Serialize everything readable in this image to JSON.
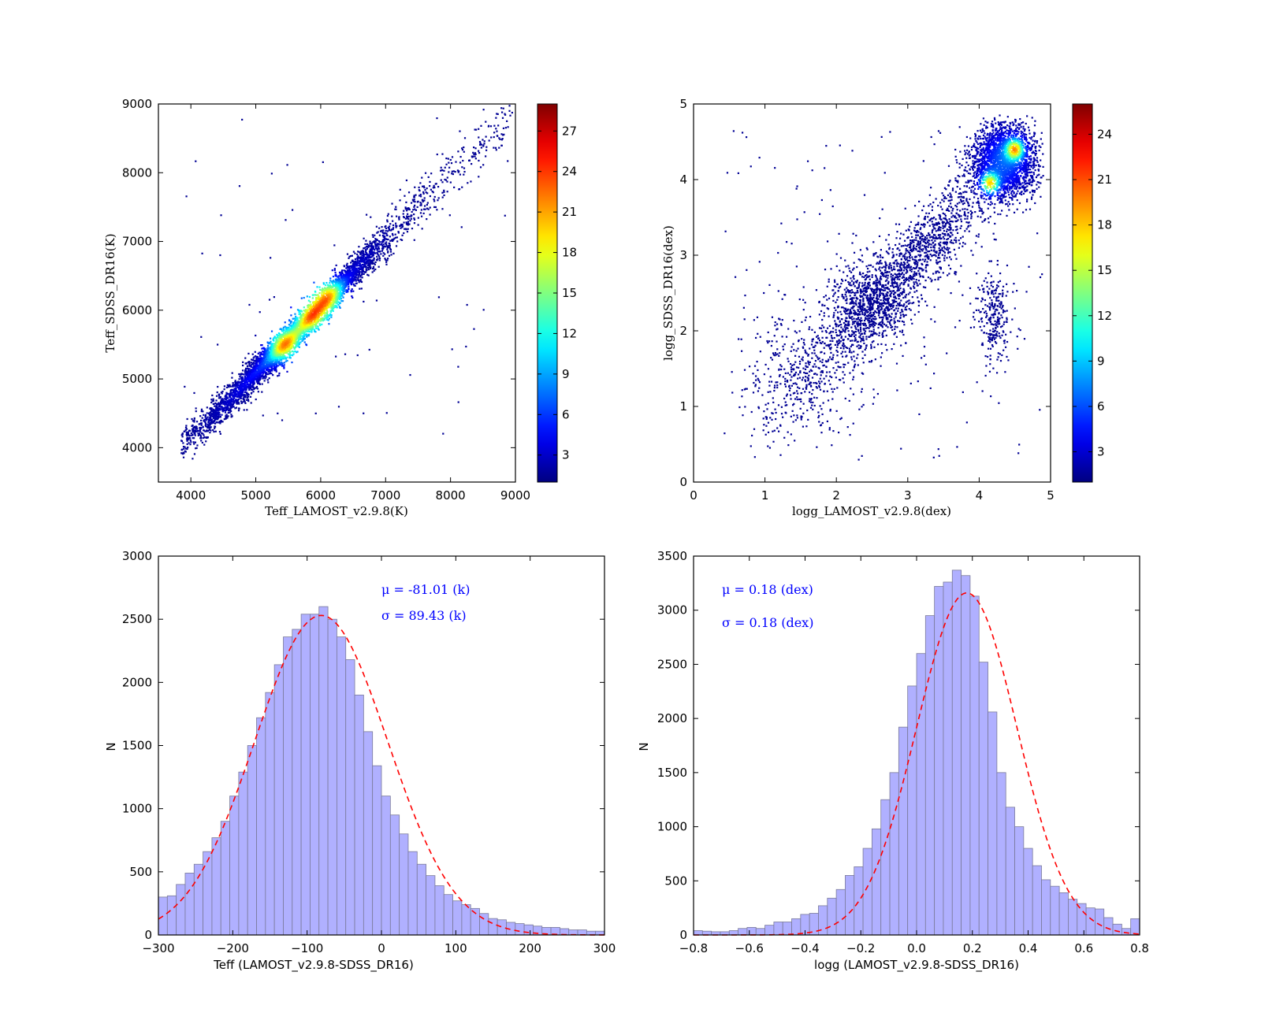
{
  "chart_data": [
    {
      "type": "heatmap",
      "subtype": "density-scatter",
      "xlabel": "Teff_LAMOST_v2.9.8(K)",
      "ylabel": "Teff_SDSS_DR16(K)",
      "xlim": [
        3500,
        9000
      ],
      "ylim": [
        3500,
        9000
      ],
      "xticks": [
        "4000",
        "5000",
        "6000",
        "7000",
        "8000",
        "9000"
      ],
      "yticks": [
        "4000",
        "5000",
        "6000",
        "7000",
        "8000",
        "9000"
      ],
      "colorbar": {
        "min": 1,
        "max": 29,
        "ticks": [
          "3",
          "6",
          "9",
          "12",
          "15",
          "18",
          "21",
          "24",
          "27"
        ],
        "colormap": "jet"
      },
      "density": {
        "ridge": [
          [
            3850,
            4050
          ],
          [
            4500,
            4600
          ],
          [
            5000,
            5100
          ],
          [
            5500,
            5550
          ],
          [
            6000,
            6050
          ],
          [
            6500,
            6550
          ],
          [
            7000,
            7050
          ],
          [
            7500,
            7550
          ],
          [
            8000,
            8000
          ],
          [
            8500,
            8450
          ],
          [
            8900,
            8800
          ]
        ],
        "peaks": [
          [
            5450,
            5500
          ],
          [
            5850,
            5900
          ],
          [
            6100,
            6200
          ]
        ],
        "scatter_dex_k": 120
      }
    },
    {
      "type": "heatmap",
      "subtype": "density-scatter",
      "xlabel": "logg_LAMOST_v2.9.8(dex)",
      "ylabel": "logg_SDSS_DR16(dex)",
      "xlim": [
        0,
        5
      ],
      "ylim": [
        0,
        5
      ],
      "xticks": [
        "0",
        "1",
        "2",
        "3",
        "4",
        "5"
      ],
      "yticks": [
        "0",
        "1",
        "2",
        "3",
        "4",
        "5"
      ],
      "colorbar": {
        "min": 1,
        "max": 26,
        "ticks": [
          "3",
          "6",
          "9",
          "12",
          "15",
          "18",
          "21",
          "24"
        ],
        "colormap": "jet"
      },
      "density": {
        "clusters": [
          {
            "x": 4.35,
            "y": 4.25,
            "sx": 0.22,
            "sy": 0.25,
            "weight": 0.45
          },
          {
            "x": 3.1,
            "y": 2.9,
            "sx": 0.55,
            "sy": 0.5,
            "weight": 0.3
          },
          {
            "x": 2.4,
            "y": 2.35,
            "sx": 0.3,
            "sy": 0.3,
            "weight": 0.12
          },
          {
            "x": 4.2,
            "y": 2.2,
            "sx": 0.12,
            "sy": 0.3,
            "weight": 0.05
          },
          {
            "x": 1.5,
            "y": 1.4,
            "sx": 0.4,
            "sy": 0.45,
            "weight": 0.08
          }
        ],
        "peaks": [
          [
            4.15,
            3.95
          ],
          [
            4.5,
            4.4
          ]
        ]
      }
    },
    {
      "type": "bar",
      "subtype": "histogram",
      "xlabel": "Teff (LAMOST_v2.9.8-SDSS_DR16)",
      "ylabel": "N",
      "xlim": [
        -300,
        300
      ],
      "ylim": [
        0,
        3000
      ],
      "xticks": [
        "−300",
        "−200",
        "−100",
        "0",
        "100",
        "200",
        "300"
      ],
      "yticks": [
        "0",
        "500",
        "1000",
        "1500",
        "2000",
        "2500",
        "3000"
      ],
      "bin_width": 12,
      "bin_start": -300,
      "values": [
        300,
        310,
        400,
        490,
        560,
        660,
        770,
        900,
        1100,
        1290,
        1500,
        1720,
        1920,
        2140,
        2360,
        2420,
        2540,
        2540,
        2600,
        2500,
        2360,
        2180,
        1900,
        1610,
        1340,
        1100,
        950,
        800,
        660,
        560,
        470,
        390,
        320,
        270,
        240,
        210,
        170,
        130,
        120,
        100,
        90,
        80,
        70,
        60,
        60,
        50,
        40,
        40,
        30,
        30
      ],
      "fit": {
        "type": "gaussian",
        "mu": -81.01,
        "sigma": 89.43,
        "peak": 2530,
        "style": "dashed",
        "color": "#ff0000"
      },
      "annotations": [
        "μ = -81.01 (k)",
        "σ = 89.43 (k)"
      ],
      "bar_color": "#b0b0ff"
    },
    {
      "type": "bar",
      "subtype": "histogram",
      "xlabel": "logg (LAMOST_v2.9.8-SDSS_DR16)",
      "ylabel": "N",
      "xlim": [
        -0.8,
        0.8
      ],
      "ylim": [
        0,
        3500
      ],
      "xticks": [
        "−0.8",
        "−0.6",
        "−0.4",
        "−0.2",
        "0.0",
        "0.2",
        "0.4",
        "0.6",
        "0.8"
      ],
      "yticks": [
        "0",
        "500",
        "1000",
        "1500",
        "2000",
        "2500",
        "3000",
        "3500"
      ],
      "bin_width": 0.032,
      "bin_start": -0.8,
      "values": [
        40,
        35,
        30,
        30,
        40,
        60,
        70,
        60,
        90,
        120,
        120,
        150,
        190,
        200,
        270,
        340,
        420,
        550,
        630,
        800,
        980,
        1250,
        1500,
        1920,
        2300,
        2600,
        2950,
        3220,
        3260,
        3370,
        3320,
        3130,
        2520,
        2060,
        1500,
        1180,
        1000,
        800,
        640,
        510,
        450,
        390,
        330,
        290,
        250,
        240,
        160,
        100,
        60,
        150
      ],
      "fit": {
        "type": "gaussian",
        "mu": 0.18,
        "sigma": 0.18,
        "peak": 3160,
        "style": "dashed",
        "color": "#ff0000"
      },
      "annotations": [
        "μ = 0.18 (dex)",
        "σ = 0.18 (dex)"
      ],
      "bar_color": "#b0b0ff"
    }
  ]
}
